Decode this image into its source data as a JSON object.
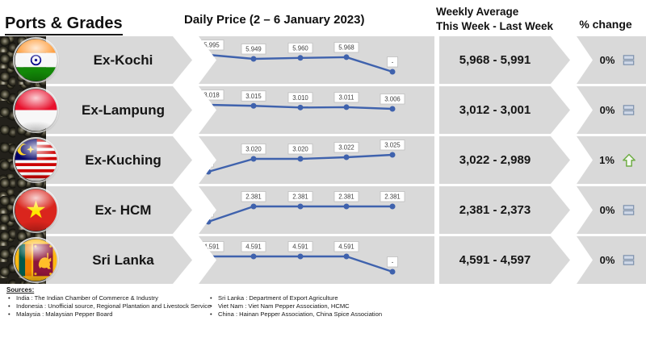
{
  "header": {
    "ports_grades": "Ports & Grades",
    "daily_price_title": "Daily Price (2 – 6 January 2023)",
    "weekly_avg_line1": "Weekly Average",
    "weekly_avg_line2": "This Week - Last Week",
    "pct_change": "% change"
  },
  "colors": {
    "band": "#d9d9d9",
    "line": "#3f62ad",
    "label_border": "#bfbfbf",
    "up_arrow": "#70ad47",
    "equal_icon": "#8497b0"
  },
  "rows": [
    {
      "port": "Ex-Kochi",
      "flag": "india",
      "weekly": "5,968 - 5,991",
      "pct": "0%",
      "trend": "equal",
      "daily_labels": [
        "5.995",
        "5.949",
        "5.960",
        "5.968",
        "-"
      ],
      "daily_values": [
        5995,
        5949,
        5960,
        5968,
        null
      ]
    },
    {
      "port": "Ex-Lampung",
      "flag": "indonesia",
      "weekly": "3,012 - 3,001",
      "pct": "0%",
      "trend": "equal",
      "daily_labels": [
        "3.018",
        "3.015",
        "3.010",
        "3.011",
        "3.006"
      ],
      "daily_values": [
        3018,
        3015,
        3010,
        3011,
        3006
      ]
    },
    {
      "port": "Ex-Kuching",
      "flag": "malaysia",
      "weekly": "3,022 - 2,989",
      "pct": "1%",
      "trend": "up",
      "daily_labels": [
        "-",
        "3.020",
        "3.020",
        "3.022",
        "3.025"
      ],
      "daily_values": [
        null,
        3020,
        3020,
        3022,
        3025
      ]
    },
    {
      "port": "Ex- HCM",
      "flag": "vietnam",
      "weekly": "2,381 - 2,373",
      "pct": "0%",
      "trend": "equal",
      "daily_labels": [
        "-",
        "2.381",
        "2.381",
        "2.381",
        "2.381"
      ],
      "daily_values": [
        null,
        2381,
        2381,
        2381,
        2381
      ]
    },
    {
      "port": "Sri Lanka",
      "flag": "srilanka",
      "weekly": "4,591 - 4,597",
      "pct": "0%",
      "trend": "equal",
      "daily_labels": [
        "4.591",
        "4.591",
        "4.591",
        "4.591",
        "-"
      ],
      "daily_values": [
        4591,
        4591,
        4591,
        4591,
        null
      ]
    }
  ],
  "chart_data": {
    "type": "line",
    "title": "Daily Price (2 – 6 January 2023)",
    "categories": [
      1,
      2,
      3,
      4,
      5
    ],
    "series": [
      {
        "name": "Ex-Kochi",
        "values": [
          5995,
          5949,
          5960,
          5968,
          null
        ],
        "weekly_average": "5,968 - 5,991",
        "pct_change": "0%"
      },
      {
        "name": "Ex-Lampung",
        "values": [
          3018,
          3015,
          3010,
          3011,
          3006
        ],
        "weekly_average": "3,012 - 3,001",
        "pct_change": "0%"
      },
      {
        "name": "Ex-Kuching",
        "values": [
          null,
          3020,
          3020,
          3022,
          3025
        ],
        "weekly_average": "3,022 - 2,989",
        "pct_change": "1%"
      },
      {
        "name": "Ex- HCM",
        "values": [
          null,
          2381,
          2381,
          2381,
          2381
        ],
        "weekly_average": "2,381 - 2,373",
        "pct_change": "0%"
      },
      {
        "name": "Sri Lanka",
        "values": [
          4591,
          4591,
          4591,
          4591,
          null
        ],
        "weekly_average": "4,591 - 4,597",
        "pct_change": "0%"
      }
    ],
    "legend_position": "none",
    "grid": false,
    "notes": "null = '-' (no quotation that day); data labels shown above each point"
  },
  "sources": {
    "heading": "Sources:",
    "left": [
      "India : The Indian Chamber of Commerce & Industry",
      "Indonesia : Unofficial source, Regional Plantation and Livestock Service",
      "Malaysia : Malaysian Pepper Board"
    ],
    "right": [
      "Sri Lanka : Department of Export Agriculture",
      "Viet Nam : Viet Nam Pepper Association, HCMC",
      "China : Hainan Pepper Association, China Spice Association"
    ]
  }
}
